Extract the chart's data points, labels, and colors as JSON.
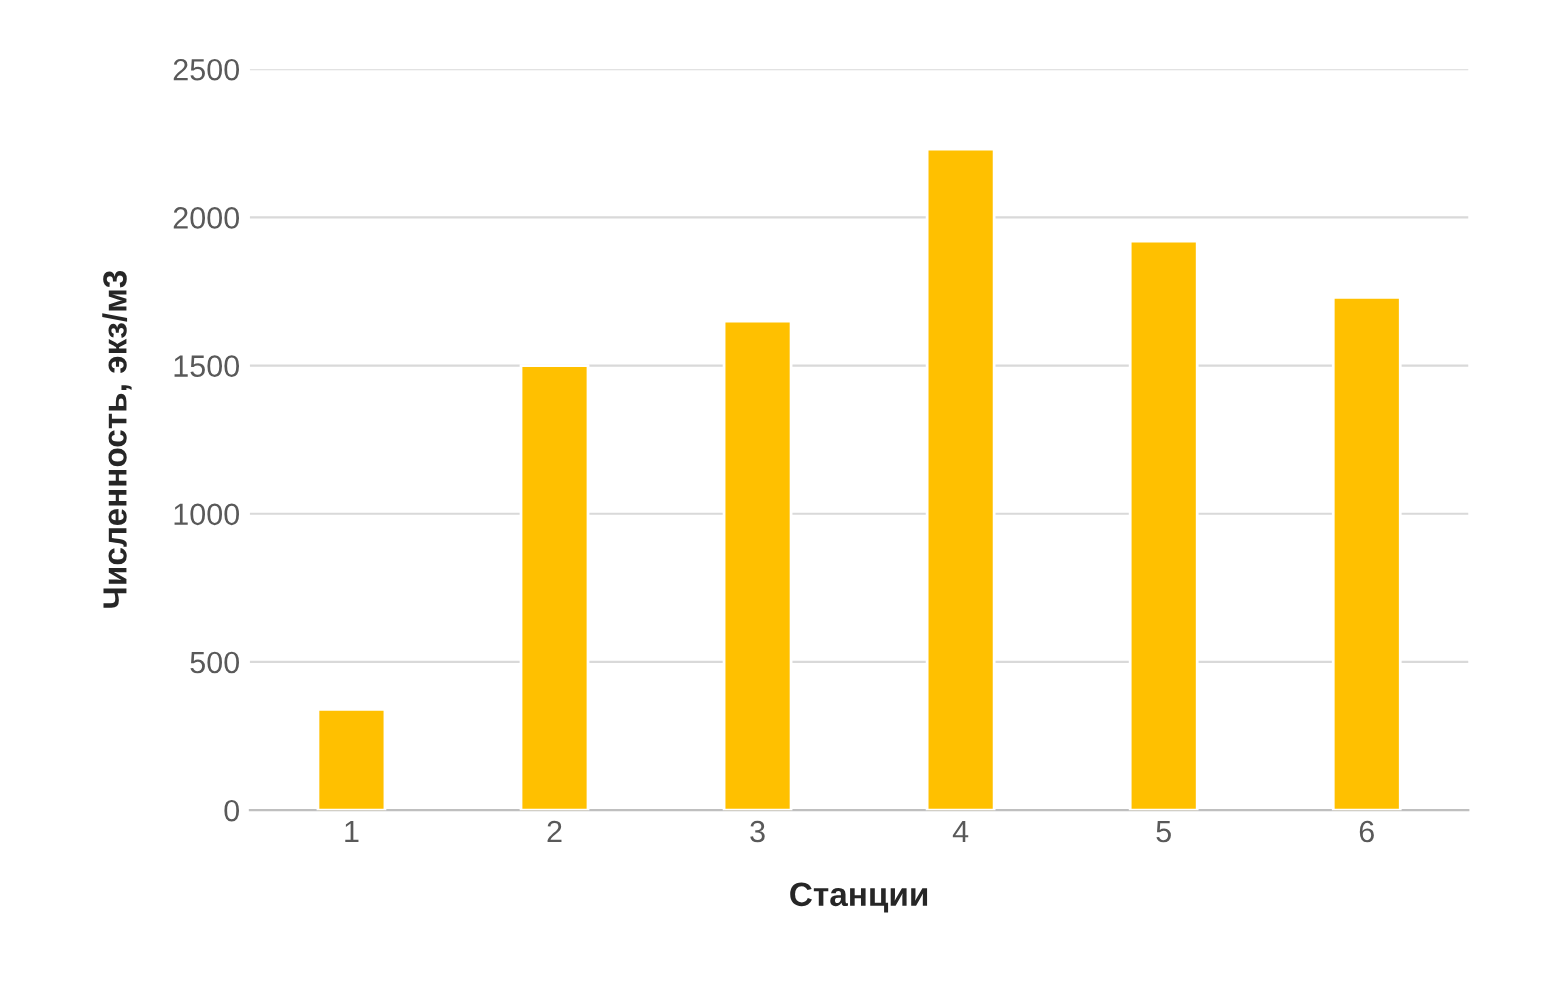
{
  "chart_data": {
    "type": "bar",
    "xlabel": "Станции",
    "ylabel": "Численность, экз/м3",
    "categories": [
      "1",
      "2",
      "3",
      "4",
      "5",
      "6"
    ],
    "values": [
      340,
      1500,
      1650,
      2230,
      1920,
      1730
    ],
    "color": "#ffc000",
    "ylim": [
      0,
      2500
    ],
    "yticks": [
      0,
      500,
      1000,
      1500,
      2000,
      2500
    ],
    "grid": "y"
  }
}
